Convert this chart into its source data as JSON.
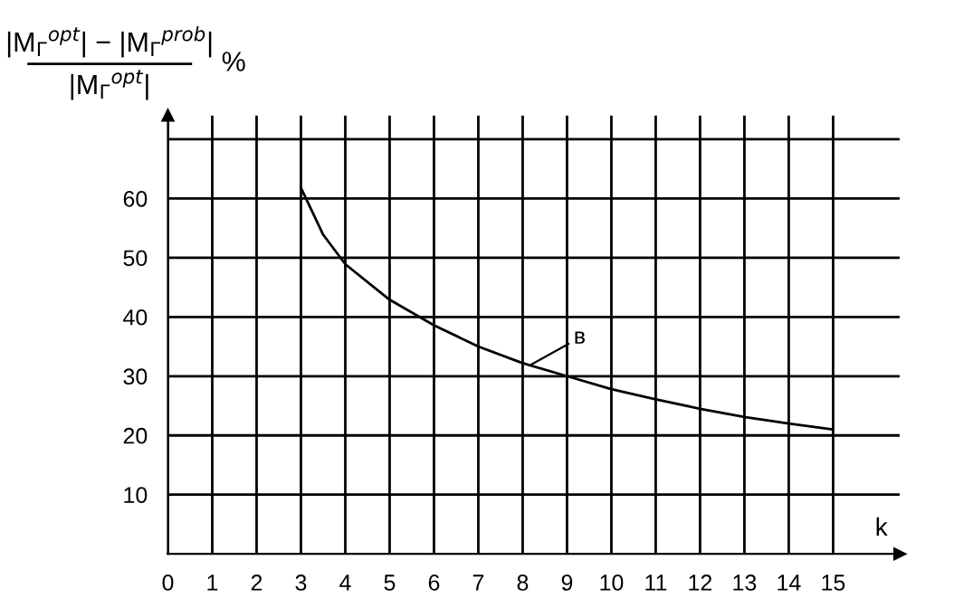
{
  "chart_data": {
    "type": "line",
    "ylabel": "|M$_{Γ}$$^{opt}$| − |M$_{Γ}$$^{prob}$|\n|M$_{Γ}$$^{opt}$|\n%",
    "xlabel": "k",
    "x": [
      3,
      3.5,
      4,
      5,
      6,
      7,
      8,
      9,
      10,
      11,
      12,
      13,
      14,
      15
    ],
    "series": [
      {
        "color": "#000000",
        "values": [
          61.8,
          53.9,
          48.9,
          42.9,
          38.6,
          35.0,
          32.2,
          30.0,
          27.8,
          26.1,
          24.5,
          23.1,
          22.0,
          21.0
        ]
      }
    ],
    "annotations": [
      {
        "text": "в",
        "x": 8.2,
        "y": 32
      }
    ],
    "xlim": [
      0,
      16.5
    ],
    "ylim": [
      0,
      74
    ],
    "xticks": [
      0,
      1,
      2,
      3,
      4,
      5,
      6,
      7,
      8,
      9,
      10,
      11,
      12,
      13,
      14,
      15
    ],
    "yticks": [
      10,
      20,
      30,
      40,
      50,
      60,
      {
        "value": 70,
        "label": null
      }
    ],
    "grid": true,
    "legend": false,
    "marker": "none",
    "line_style": "solid"
  }
}
